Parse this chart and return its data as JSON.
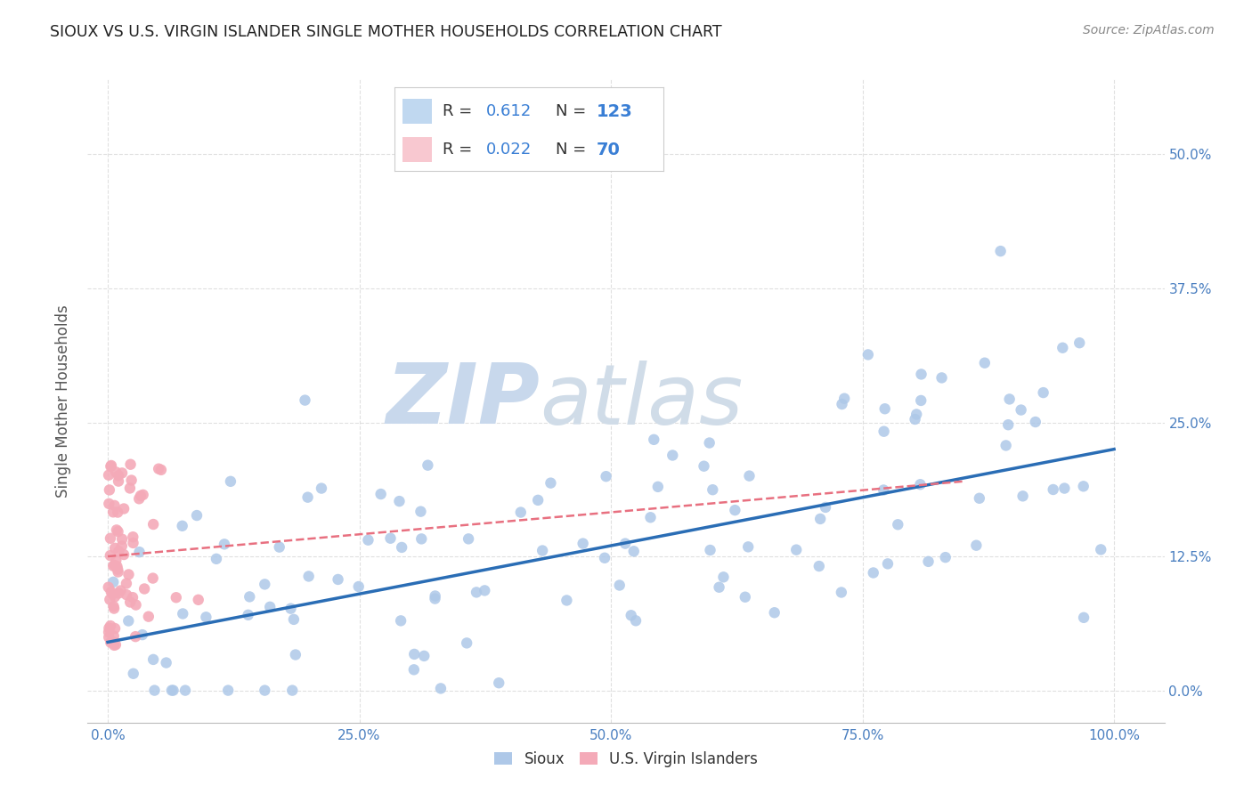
{
  "title": "SIOUX VS U.S. VIRGIN ISLANDER SINGLE MOTHER HOUSEHOLDS CORRELATION CHART",
  "source": "Source: ZipAtlas.com",
  "ylabel": "Single Mother Households",
  "xlabel": "",
  "watermark_zip": "ZIP",
  "watermark_atlas": "atlas",
  "xlim": [
    -0.02,
    1.05
  ],
  "ylim": [
    -0.03,
    0.57
  ],
  "xticks": [
    0.0,
    0.25,
    0.5,
    0.75,
    1.0
  ],
  "xtick_labels": [
    "0.0%",
    "25.0%",
    "50.0%",
    "75.0%",
    "100.0%"
  ],
  "ytick_labels": [
    "0.0%",
    "12.5%",
    "25.0%",
    "37.5%",
    "50.0%"
  ],
  "yticks": [
    0.0,
    0.125,
    0.25,
    0.375,
    0.5
  ],
  "legend_labels": [
    "Sioux",
    "U.S. Virgin Islanders"
  ],
  "sioux_R": 0.612,
  "sioux_N": 123,
  "vi_R": 0.022,
  "vi_N": 70,
  "sioux_color": "#aec8e8",
  "vi_color": "#f4aab8",
  "sioux_line_color": "#2a6db5",
  "vi_line_color": "#e87080",
  "background_color": "#ffffff",
  "grid_color": "#cccccc",
  "title_color": "#222222",
  "watermark_color_zip": "#c8d8ec",
  "watermark_color_atlas": "#d0dce8",
  "legend_box_color_sioux": "#c0d8f0",
  "legend_box_color_vi": "#f8c8d0",
  "tick_color": "#4a7fc0",
  "sioux_line_start_y": 0.045,
  "sioux_line_end_y": 0.225,
  "vi_line_start_y": 0.125,
  "vi_line_end_y": 0.195
}
